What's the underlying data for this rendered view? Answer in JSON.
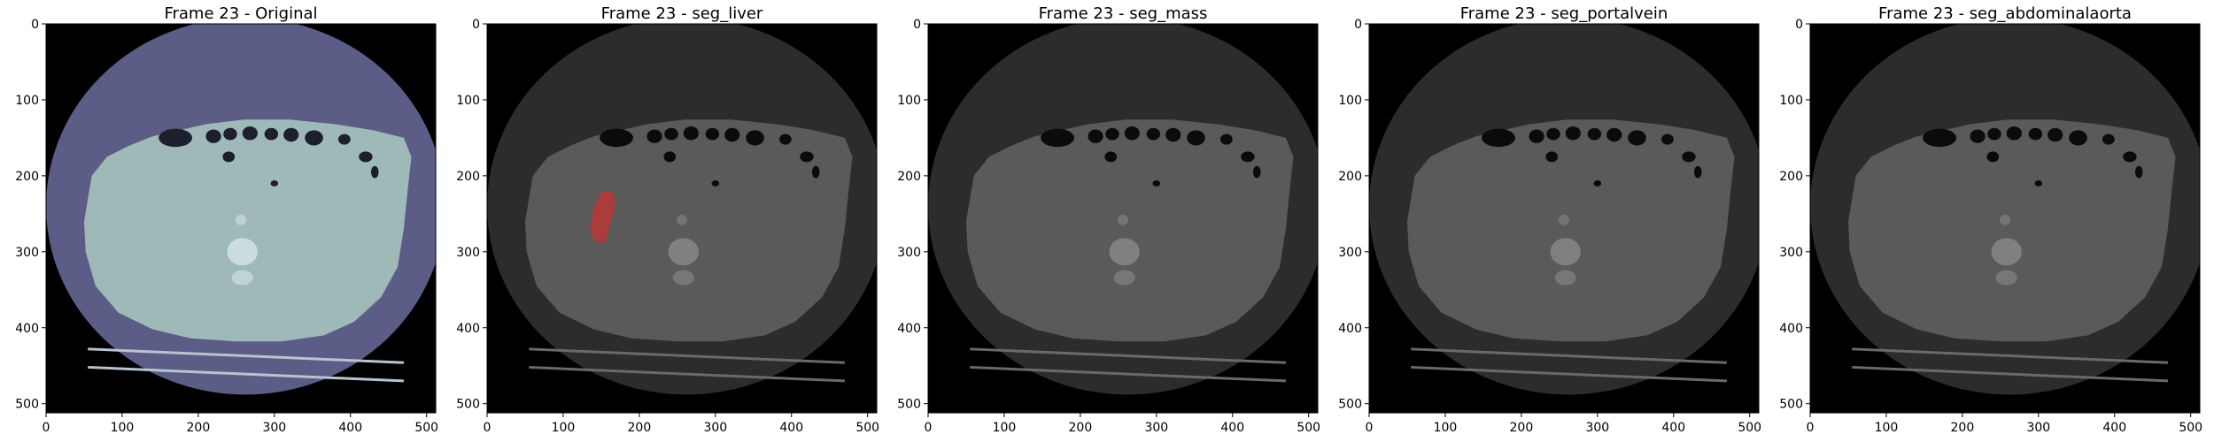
{
  "panels": [
    {
      "title": "Frame 23 - Original",
      "kind": "original",
      "overlay": null
    },
    {
      "title": "Frame 23 - seg_liver",
      "kind": "segmentation",
      "overlay": {
        "label": "liver",
        "color": "#c83232"
      }
    },
    {
      "title": "Frame 23 - seg_mass",
      "kind": "segmentation",
      "overlay": null
    },
    {
      "title": "Frame 23 - seg_portalvein",
      "kind": "segmentation",
      "overlay": null
    },
    {
      "title": "Frame 23 - seg_abdominalaorta",
      "kind": "segmentation",
      "overlay": null
    }
  ],
  "axes": {
    "x_ticks": [
      "0",
      "100",
      "200",
      "300",
      "400",
      "500"
    ],
    "y_ticks": [
      "0",
      "100",
      "200",
      "300",
      "400",
      "500"
    ],
    "x_values": [
      0,
      100,
      200,
      300,
      400,
      500
    ],
    "y_values": [
      0,
      100,
      200,
      300,
      400,
      500
    ],
    "range": [
      0,
      512
    ]
  },
  "colors": {
    "original_body": "#9fb9b9",
    "original_fov": "#5b5d86",
    "segmentation_body": "#5a5a5a",
    "segmentation_fov": "#2c2c2c",
    "background": "#000000"
  }
}
